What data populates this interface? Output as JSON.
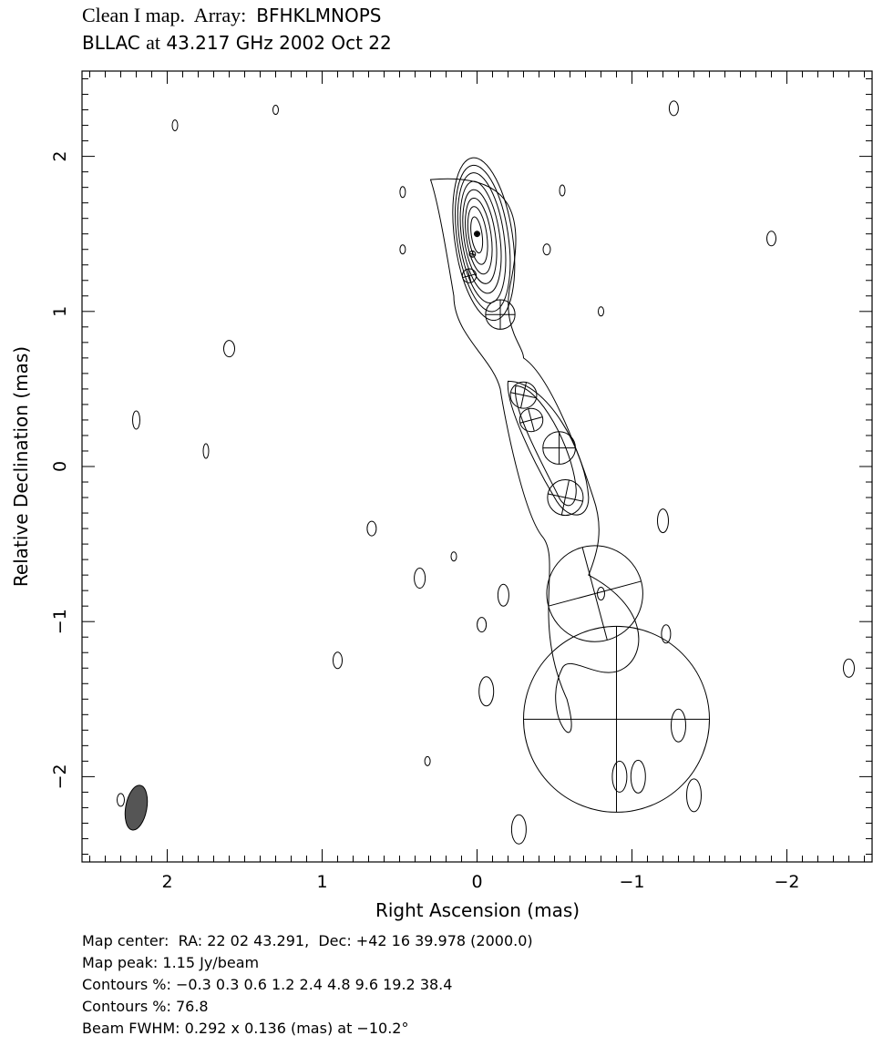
{
  "header": {
    "title_prefix": "Clean I map.  Array:",
    "array": "BFHKLMNOPS",
    "source": "BLLAC",
    "at_word": "at",
    "freq_date": "43.217 GHz 2002 Oct 22"
  },
  "footer": {
    "map_center": "Map center:  RA: 22 02 43.291,  Dec: +42 16 39.978 (2000.0)",
    "map_peak": "Map peak: 1.15 Jy/beam",
    "contours1": "Contours %: −0.3 0.3 0.6 1.2 2.4 4.8 9.6 19.2 38.4",
    "contours2": "Contours %: 76.8",
    "beam": "Beam FWHM: 0.292 x 0.136 (mas) at −10.2°"
  },
  "chart_data": {
    "type": "contour",
    "xlabel": "Right Ascension  (mas)",
    "ylabel": "Relative Declination  (mas)",
    "xlim": [
      2.55,
      -2.55
    ],
    "ylim": [
      -2.55,
      2.55
    ],
    "x_ticks": [
      2,
      1,
      0,
      -1,
      -2
    ],
    "y_ticks": [
      2,
      1,
      0,
      -1,
      -2
    ],
    "x_tick_labels": [
      "2",
      "1",
      "0",
      "−1",
      "−2"
    ],
    "y_tick_labels": [
      "2",
      "1",
      "0",
      "−1",
      "−2"
    ],
    "contour_levels_percent": [
      -0.3,
      0.3,
      0.6,
      1.2,
      2.4,
      4.8,
      9.6,
      19.2,
      38.4,
      76.8
    ],
    "peak_jy_per_beam": 1.15,
    "beam": {
      "major_mas": 0.292,
      "minor_mas": 0.136,
      "pa_deg": -10.2,
      "x": 2.2,
      "y": -2.2
    },
    "components": [
      {
        "x": 0.0,
        "y": 1.5,
        "r": 0.015
      },
      {
        "x": 0.03,
        "y": 1.37,
        "r": 0.02
      },
      {
        "x": 0.05,
        "y": 1.23,
        "r": 0.045
      },
      {
        "x": -0.15,
        "y": 0.98,
        "r": 0.095
      },
      {
        "x": -0.3,
        "y": 0.46,
        "r": 0.085
      },
      {
        "x": -0.35,
        "y": 0.3,
        "r": 0.075
      },
      {
        "x": -0.53,
        "y": 0.12,
        "r": 0.105
      },
      {
        "x": -0.57,
        "y": -0.2,
        "r": 0.115
      },
      {
        "x": -0.76,
        "y": -0.82,
        "r": 0.31
      },
      {
        "x": -0.9,
        "y": -1.63,
        "r": 0.6
      }
    ]
  }
}
